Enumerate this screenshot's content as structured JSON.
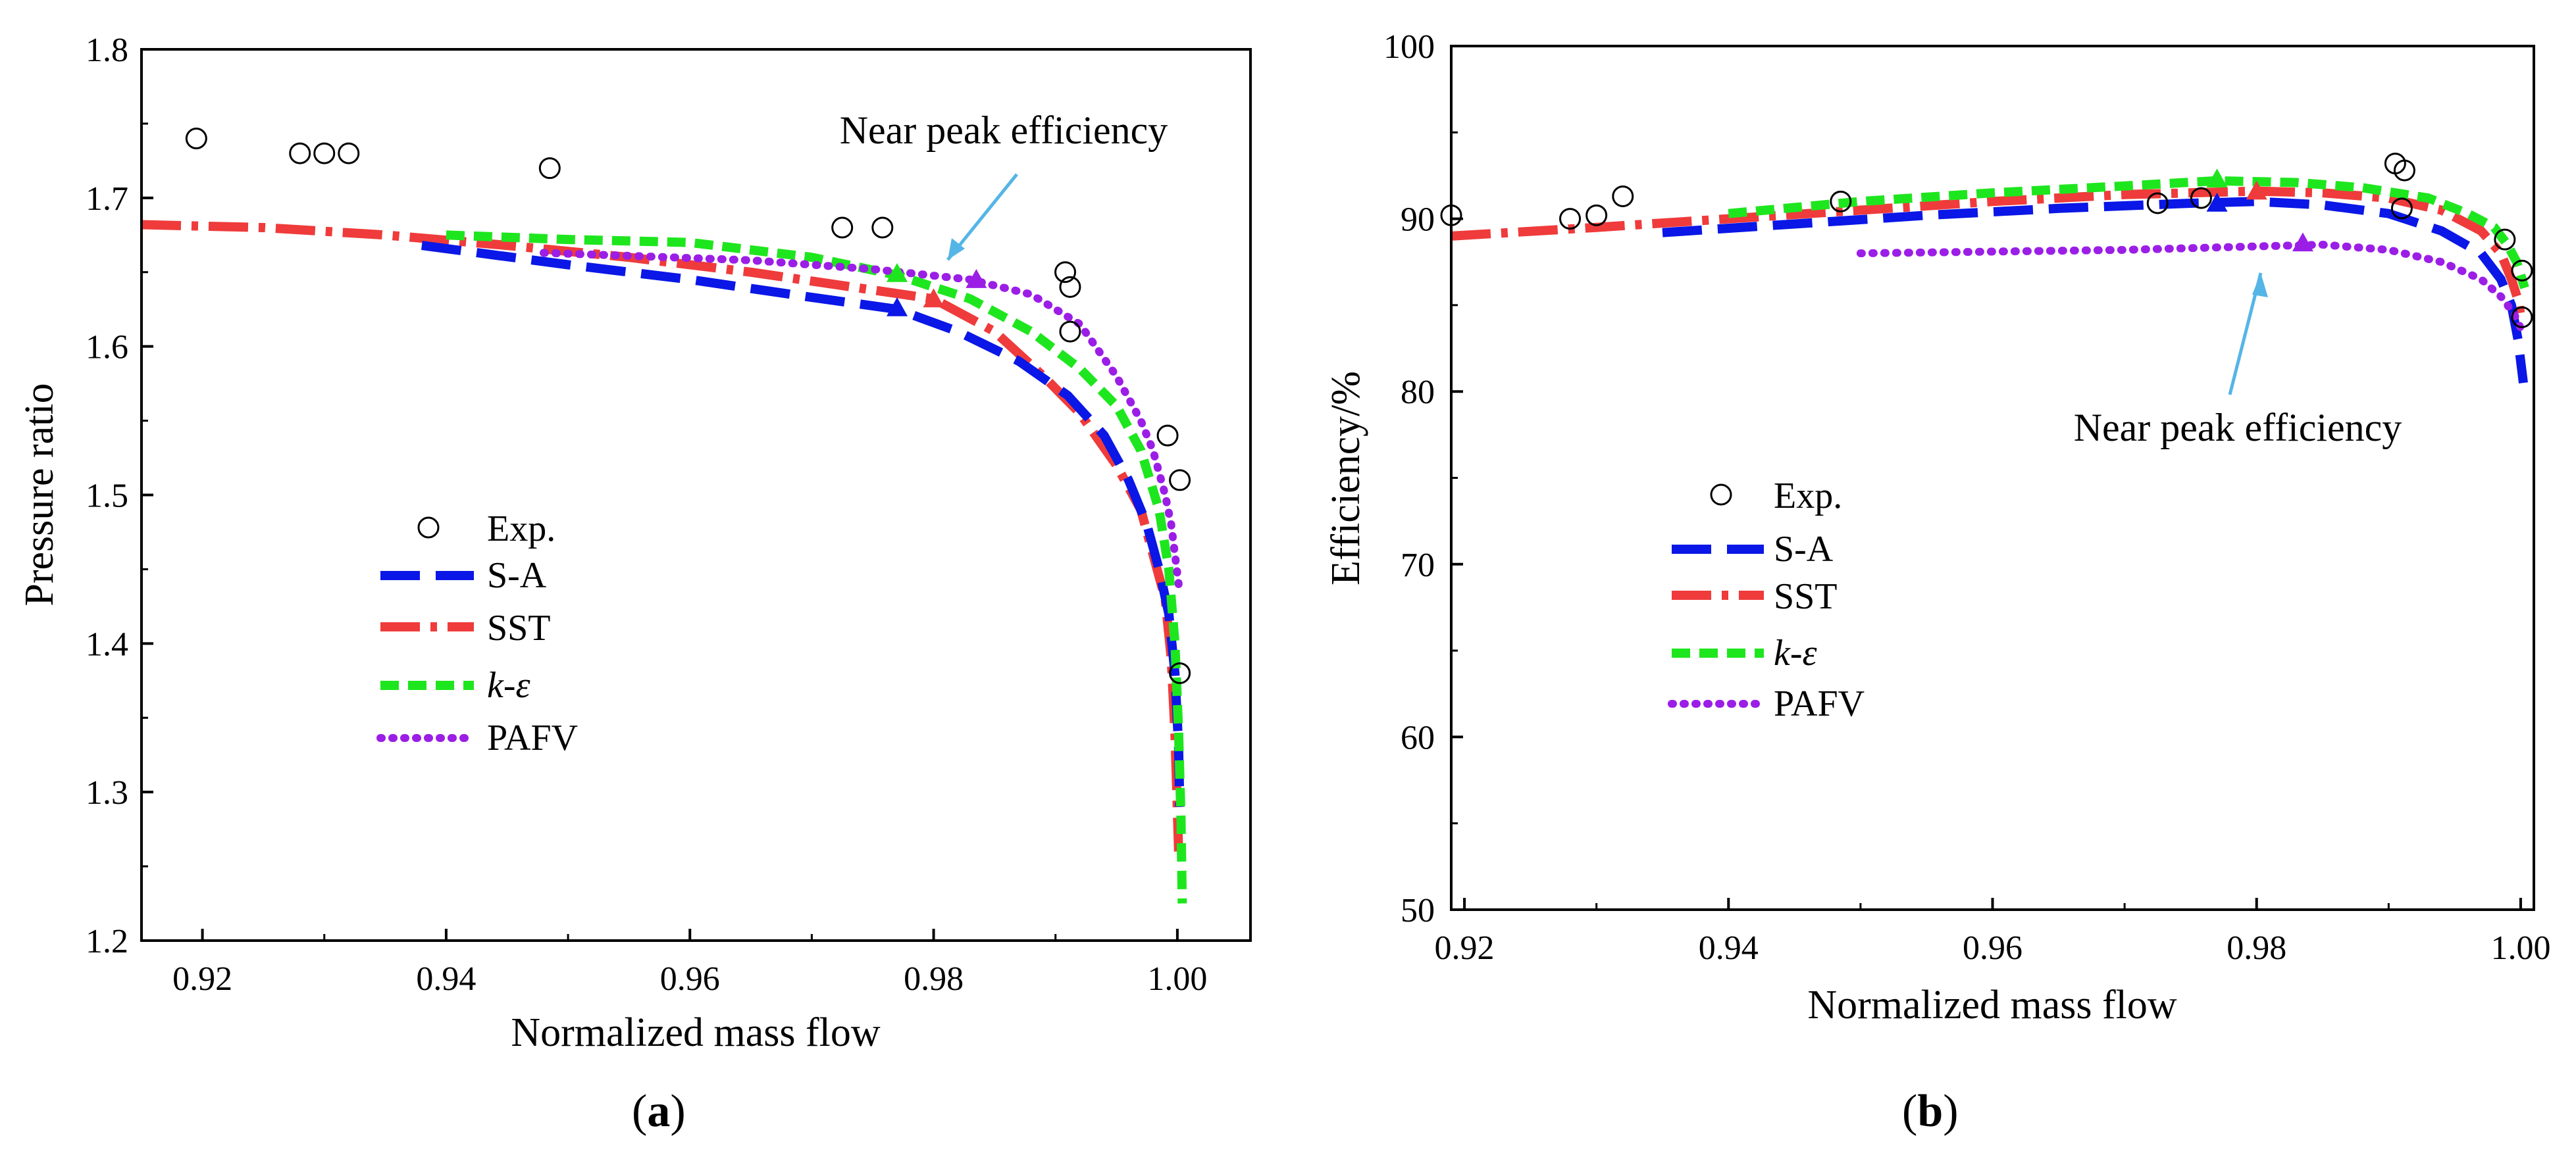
{
  "colors": {
    "exp": "#000000",
    "sa": "#0a17e6",
    "sst": "#ef3b3b",
    "ke": "#1ee61e",
    "pafv": "#9b1ee6",
    "arrow": "#55b5e6"
  },
  "legend": {
    "exp": "Exp.",
    "sa": "S-A",
    "sst": "SST",
    "ke_k": "k",
    "ke_sep": "-",
    "ke_eps": "ε",
    "pafv": "PAFV"
  },
  "panels": {
    "a": {
      "label_open": "(",
      "label_letter": "a",
      "label_close": ")"
    },
    "b": {
      "label_open": "(",
      "label_letter": "b",
      "label_close": ")"
    }
  },
  "chart_data": [
    {
      "id": "a",
      "type": "line",
      "xlabel": "Normalized mass flow",
      "ylabel": "Pressure ratio",
      "xlim": [
        0.915,
        1.006
      ],
      "ylim": [
        1.2,
        1.8
      ],
      "xticks": [
        "0.92",
        "0.94",
        "0.96",
        "0.98",
        "1.00"
      ],
      "yticks": [
        "1.2",
        "1.3",
        "1.4",
        "1.5",
        "1.6",
        "1.7",
        "1.8"
      ],
      "annotation": {
        "text": "Near peak efficiency",
        "at": [
          0.9805,
          1.645
        ]
      },
      "exp": {
        "x": [
          0.9195,
          0.928,
          0.93,
          0.932,
          0.9485,
          0.9725,
          0.9758,
          0.9908,
          0.9912,
          0.9912,
          0.9992,
          1.0002,
          1.0002
        ],
        "y": [
          1.74,
          1.73,
          1.73,
          1.73,
          1.72,
          1.68,
          1.68,
          1.65,
          1.64,
          1.61,
          1.54,
          1.51,
          1.38
        ]
      },
      "series": [
        {
          "name": "S-A",
          "key": "sa",
          "x": [
            0.938,
            0.95,
            0.96,
            0.97,
            0.977,
            0.982,
            0.987,
            0.991,
            0.994,
            0.996,
            0.9975,
            0.9985,
            0.9993,
            0.9998,
            1.0001,
            1.0002
          ],
          "y": [
            1.668,
            1.655,
            1.645,
            1.633,
            1.625,
            1.61,
            1.59,
            1.567,
            1.54,
            1.51,
            1.48,
            1.45,
            1.42,
            1.38,
            1.33,
            1.29
          ]
        },
        {
          "name": "SST",
          "key": "sst",
          "x": [
            0.915,
            0.925,
            0.935,
            0.945,
            0.955,
            0.965,
            0.975,
            0.98,
            0.985,
            0.989,
            0.992,
            0.995,
            0.997,
            0.998,
            0.999,
            0.9995,
            0.9998,
            1.0001
          ],
          "y": [
            1.682,
            1.68,
            1.675,
            1.668,
            1.66,
            1.65,
            1.638,
            1.632,
            1.61,
            1.58,
            1.555,
            1.52,
            1.49,
            1.46,
            1.43,
            1.39,
            1.34,
            1.26
          ]
        },
        {
          "name": "k-ε",
          "key": "ke",
          "x": [
            0.94,
            0.95,
            0.96,
            0.97,
            0.977,
            0.983,
            0.988,
            0.992,
            0.995,
            0.997,
            0.9985,
            0.9993,
            0.9998,
            1.0001,
            1.0003,
            1.0004
          ],
          "y": [
            1.675,
            1.672,
            1.67,
            1.66,
            1.648,
            1.632,
            1.61,
            1.585,
            1.56,
            1.53,
            1.49,
            1.45,
            1.4,
            1.34,
            1.28,
            1.225
          ]
        },
        {
          "name": "PAFV",
          "key": "pafv",
          "x": [
            0.948,
            0.955,
            0.965,
            0.975,
            0.983,
            0.988,
            0.992,
            0.995,
            0.997,
            0.998,
            0.999,
            0.9995,
            0.9998,
            1.0001
          ],
          "y": [
            1.663,
            1.661,
            1.658,
            1.652,
            1.645,
            1.635,
            1.615,
            1.58,
            1.55,
            1.53,
            1.5,
            1.48,
            1.46,
            1.44
          ]
        }
      ],
      "peaks": [
        {
          "key": "sa",
          "x": 0.977,
          "y": 1.626
        },
        {
          "key": "ke",
          "x": 0.977,
          "y": 1.649
        },
        {
          "key": "sst",
          "x": 0.98,
          "y": 1.632
        },
        {
          "key": "pafv",
          "x": 0.9835,
          "y": 1.645
        }
      ]
    },
    {
      "id": "b",
      "type": "line",
      "xlabel": "Normalized mass flow",
      "ylabel": "Efficiency/%",
      "xlim": [
        0.919,
        1.001
      ],
      "ylim": [
        50,
        100
      ],
      "xticks": [
        "0.92",
        "0.94",
        "0.96",
        "0.98",
        "1.00"
      ],
      "yticks": [
        "50",
        "60",
        "70",
        "80",
        "90",
        "100"
      ],
      "annotation": {
        "text": "Near peak efficiency",
        "at": [
          0.9835,
          88.3
        ]
      },
      "exp": {
        "x": [
          0.919,
          0.928,
          0.93,
          0.932,
          0.9485,
          0.9725,
          0.9758,
          0.9905,
          0.9912,
          0.991,
          0.9988,
          1.0001,
          1.0001
        ],
        "y": [
          90.2,
          90.0,
          90.2,
          91.3,
          91.0,
          90.9,
          91.2,
          93.2,
          92.8,
          90.6,
          88.8,
          87.0,
          84.3
        ]
      },
      "series": [
        {
          "name": "S-A",
          "key": "sa",
          "x": [
            0.935,
            0.945,
            0.955,
            0.965,
            0.975,
            0.98,
            0.985,
            0.99,
            0.994,
            0.997,
            0.9985,
            0.9993,
            0.9998,
            1.0002
          ],
          "y": [
            89.2,
            89.7,
            90.2,
            90.6,
            90.9,
            91.0,
            90.8,
            90.3,
            89.3,
            88.0,
            86.5,
            85.0,
            83.0,
            80.5
          ]
        },
        {
          "name": "SST",
          "key": "sst",
          "x": [
            0.919,
            0.93,
            0.94,
            0.95,
            0.96,
            0.97,
            0.98,
            0.985,
            0.99,
            0.994,
            0.997,
            0.9985,
            0.9993,
            0.9998,
            1.0001
          ],
          "y": [
            89.0,
            89.5,
            90.0,
            90.5,
            91.0,
            91.4,
            91.6,
            91.5,
            91.2,
            90.5,
            89.3,
            88.0,
            86.5,
            85.3,
            84.0
          ]
        },
        {
          "name": "k-ε",
          "key": "ke",
          "x": [
            0.94,
            0.95,
            0.96,
            0.97,
            0.977,
            0.983,
            0.988,
            0.993,
            0.996,
            0.998,
            0.999,
            0.9997,
            1.0003
          ],
          "y": [
            90.3,
            91.0,
            91.5,
            91.9,
            92.2,
            92.1,
            91.8,
            91.2,
            90.3,
            89.5,
            88.5,
            87.5,
            86.0
          ]
        },
        {
          "name": "PAFV",
          "key": "pafv",
          "x": [
            0.95,
            0.96,
            0.97,
            0.98,
            0.985,
            0.99,
            0.994,
            0.997,
            0.9985,
            0.9995,
            1.0001
          ],
          "y": [
            88.0,
            88.1,
            88.2,
            88.4,
            88.5,
            88.2,
            87.5,
            86.5,
            85.5,
            84.5,
            83.5
          ]
        }
      ],
      "peaks": [
        {
          "key": "sa",
          "x": 0.977,
          "y": 90.9
        },
        {
          "key": "ke",
          "x": 0.977,
          "y": 92.3
        },
        {
          "key": "sst",
          "x": 0.98,
          "y": 91.6
        },
        {
          "key": "pafv",
          "x": 0.9835,
          "y": 88.6
        }
      ]
    }
  ]
}
